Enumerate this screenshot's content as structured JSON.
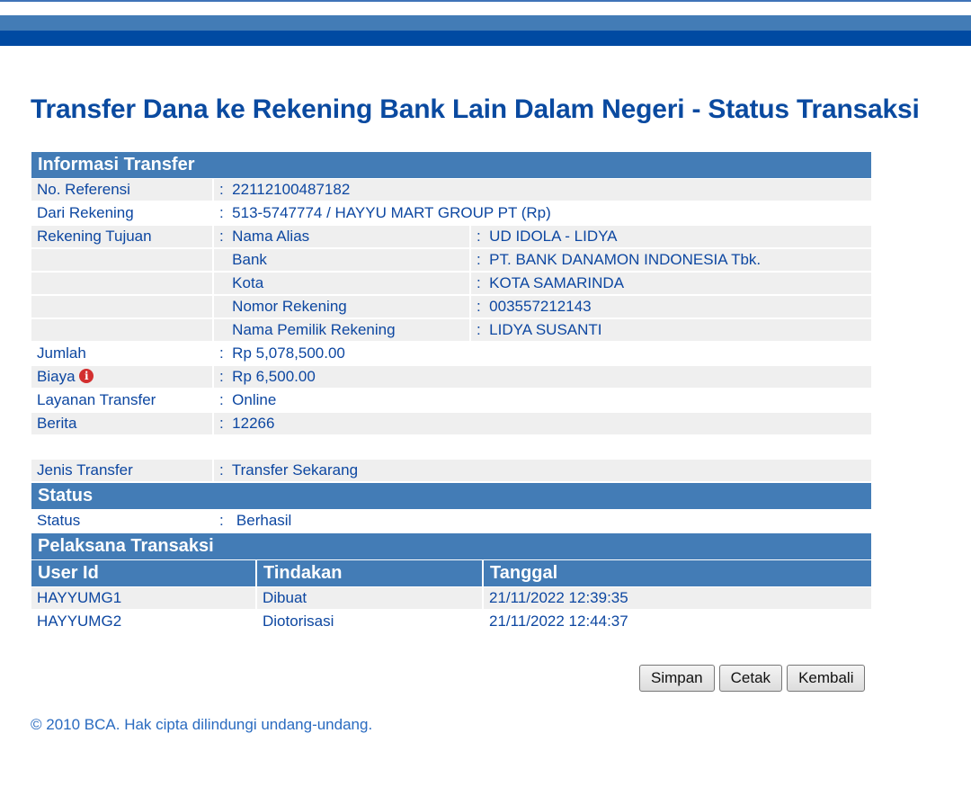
{
  "title": "Transfer Dana ke Rekening Bank Lain Dalam Negeri - Status Transaksi",
  "info": {
    "header": "Informasi Transfer",
    "no_ref": {
      "label": "No. Referensi",
      "value": "22112100487182"
    },
    "dari": {
      "label": "Dari Rekening",
      "value": "513-5747774 / HAYYU MART GROUP PT  (Rp)"
    },
    "tujuan": {
      "label": "Rekening Tujuan",
      "items": [
        {
          "label": "Nama Alias",
          "value": "UD IDOLA - LIDYA"
        },
        {
          "label": "Bank",
          "value": "PT. BANK DANAMON INDONESIA Tbk."
        },
        {
          "label": "Kota",
          "value": "KOTA SAMARINDA"
        },
        {
          "label": "Nomor Rekening",
          "value": "003557212143"
        },
        {
          "label": "Nama Pemilik Rekening",
          "value": "LIDYA SUSANTI"
        }
      ]
    },
    "jumlah": {
      "label": "Jumlah",
      "value": "Rp 5,078,500.00"
    },
    "biaya": {
      "label": "Biaya",
      "value": "Rp 6,500.00",
      "icon": "info-icon"
    },
    "layanan": {
      "label": "Layanan Transfer",
      "value": "Online"
    },
    "berita": {
      "label": "Berita",
      "value": "12266"
    },
    "jenis": {
      "label": "Jenis Transfer",
      "value": "Transfer Sekarang"
    }
  },
  "separator": ":",
  "status": {
    "header": "Status",
    "label": "Status",
    "value": "Berhasil"
  },
  "pelaksana": {
    "header": "Pelaksana Transaksi",
    "columns": [
      "User Id",
      "Tindakan",
      "Tanggal"
    ],
    "rows": [
      [
        "HAYYUMG1",
        "Dibuat",
        "21/11/2022 12:39:35"
      ],
      [
        "HAYYUMG2",
        "Diotorisasi",
        "21/11/2022 12:44:37"
      ]
    ]
  },
  "buttons": {
    "simpan": "Simpan",
    "cetak": "Cetak",
    "kembali": "Kembali"
  },
  "footer": "©  2010 BCA. Hak cipta dilindungi undang-undang."
}
